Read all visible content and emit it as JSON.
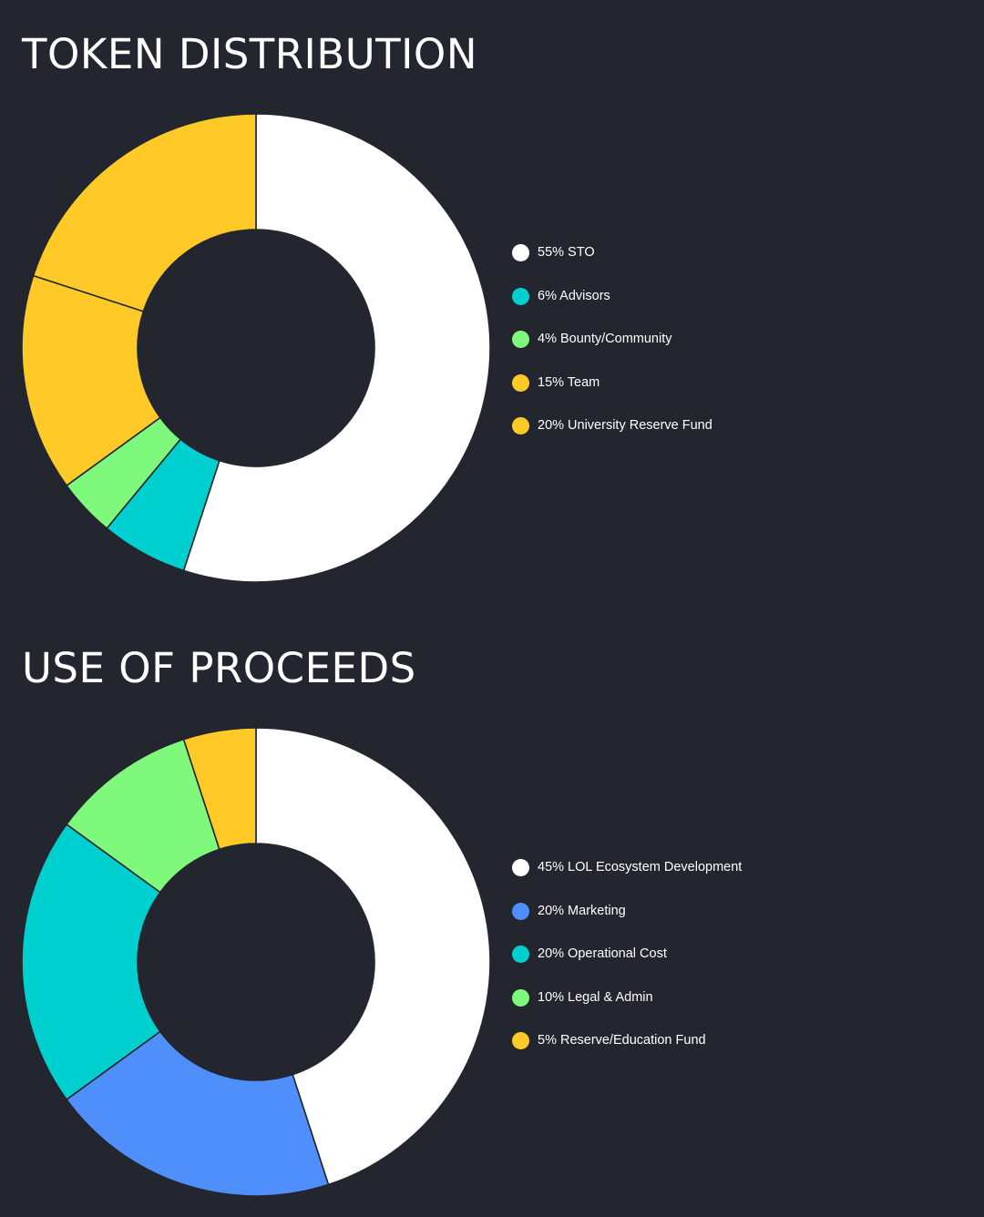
{
  "chart_data": [
    {
      "type": "pie",
      "title": "TOKEN DISTRIBUTION",
      "categories": [
        "STO",
        "Advisors",
        "Bounty/Community",
        "Team",
        "University Reserve Fund"
      ],
      "values": [
        55,
        6,
        4,
        15,
        20
      ],
      "colors": [
        "#ffffff",
        "#00cfd0",
        "#7ff97c",
        "#ffca28",
        "#ffca28"
      ],
      "legend": [
        {
          "label": "55% STO",
          "color": "#ffffff"
        },
        {
          "label": "6% Advisors",
          "color": "#00cfd0"
        },
        {
          "label": "4% Bounty/Community",
          "color": "#7ff97c"
        },
        {
          "label": "15% Team",
          "color": "#ffca28"
        },
        {
          "label": "20% University Reserve Fund",
          "color": "#ffca28"
        }
      ],
      "legend_position": "right",
      "donut": true
    },
    {
      "type": "pie",
      "title": "USE OF PROCEEDS",
      "categories": [
        "LOL Ecosystem Development",
        "Marketing",
        "Operational Cost",
        "Legal & Admin",
        "Reserve/Education Fund"
      ],
      "values": [
        45,
        20,
        20,
        10,
        5
      ],
      "colors": [
        "#ffffff",
        "#4f8ffc",
        "#00cfd0",
        "#7ff97c",
        "#ffca28"
      ],
      "legend": [
        {
          "label": "45% LOL Ecosystem Development",
          "color": "#ffffff"
        },
        {
          "label": "20% Marketing",
          "color": "#4f8ffc"
        },
        {
          "label": "20% Operational Cost",
          "color": "#00cfd0"
        },
        {
          "label": "10% Legal & Admin",
          "color": "#7ff97c"
        },
        {
          "label": "5% Reserve/Education Fund",
          "color": "#ffca28"
        }
      ],
      "legend_position": "right",
      "donut": true
    }
  ],
  "colors": {
    "background": "#23262e",
    "slice_border": "#23262e",
    "text": "#ffffff"
  }
}
